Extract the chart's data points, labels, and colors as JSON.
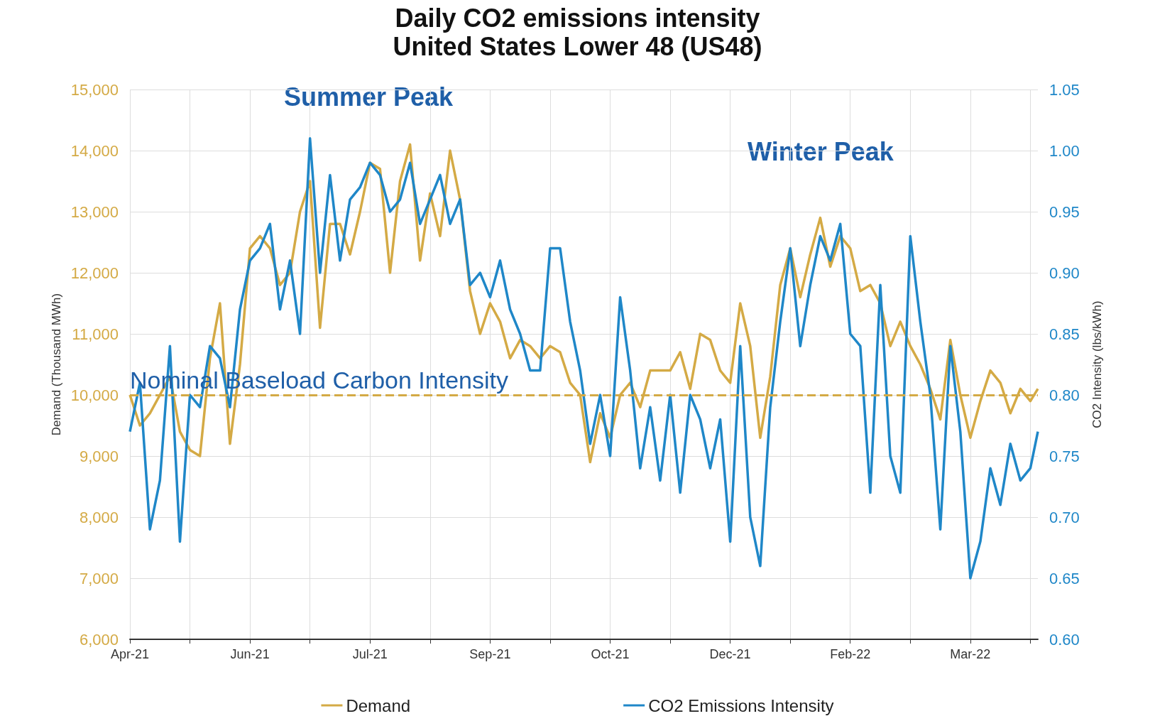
{
  "chart_data": {
    "type": "line",
    "title": "Daily CO2 emissions intensity",
    "subtitle": "United States Lower 48 (US48)",
    "ylabel": "Demand (Thousand MWh)",
    "y2label": "CO2 Intensity (lbs/kWh)",
    "x": [
      "2021-04-19",
      "2021-04-23",
      "2021-04-27",
      "2021-05-01",
      "2021-05-05",
      "2021-05-09",
      "2021-05-13",
      "2021-05-17",
      "2021-05-21",
      "2021-05-25",
      "2021-05-29",
      "2021-06-02",
      "2021-06-06",
      "2021-06-10",
      "2021-06-14",
      "2021-06-18",
      "2021-06-22",
      "2021-06-26",
      "2021-06-30",
      "2021-07-04",
      "2021-07-08",
      "2021-07-12",
      "2021-07-16",
      "2021-07-20",
      "2021-07-24",
      "2021-07-28",
      "2021-08-01",
      "2021-08-05",
      "2021-08-09",
      "2021-08-13",
      "2021-08-17",
      "2021-08-21",
      "2021-08-25",
      "2021-08-29",
      "2021-09-02",
      "2021-09-06",
      "2021-09-10",
      "2021-09-14",
      "2021-09-18",
      "2021-09-22",
      "2021-09-26",
      "2021-09-30",
      "2021-10-04",
      "2021-10-08",
      "2021-10-12",
      "2021-10-16",
      "2021-10-20",
      "2021-10-24",
      "2021-10-28",
      "2021-11-01",
      "2021-11-05",
      "2021-11-09",
      "2021-11-13",
      "2021-11-17",
      "2021-11-21",
      "2021-11-25",
      "2021-11-29",
      "2021-12-03",
      "2021-12-07",
      "2021-12-11",
      "2021-12-15",
      "2021-12-19",
      "2021-12-23",
      "2021-12-27",
      "2021-12-31",
      "2022-01-04",
      "2022-01-08",
      "2022-01-12",
      "2022-01-16",
      "2022-01-20",
      "2022-01-24",
      "2022-01-28",
      "2022-02-01",
      "2022-02-05",
      "2022-02-09",
      "2022-02-13",
      "2022-02-17",
      "2022-02-21",
      "2022-02-25",
      "2022-03-01",
      "2022-03-05",
      "2022-03-09",
      "2022-03-13",
      "2022-03-17",
      "2022-03-21",
      "2022-03-25",
      "2022-03-29",
      "2022-04-02",
      "2022-04-06",
      "2022-04-10",
      "2022-04-14",
      "2022-04-17"
    ],
    "series": [
      {
        "name": "Demand",
        "color": "#d4aa45",
        "values": [
          10000,
          9500,
          9700,
          10000,
          10300,
          9400,
          9100,
          9000,
          10600,
          11500,
          9200,
          10500,
          12400,
          12600,
          12400,
          11800,
          12000,
          13000,
          13500,
          11100,
          12800,
          12800,
          12300,
          13000,
          13800,
          13700,
          12000,
          13500,
          14100,
          12200,
          13300,
          12600,
          14000,
          13200,
          11700,
          11000,
          11500,
          11200,
          10600,
          10900,
          10800,
          10600,
          10800,
          10700,
          10200,
          10000,
          8900,
          9700,
          9300,
          10000,
          10200,
          9800,
          10400,
          10400,
          10400,
          10700,
          10100,
          11000,
          10900,
          10400,
          10200,
          11500,
          10800,
          9300,
          10300,
          11800,
          12400,
          11600,
          12300,
          12900,
          12100,
          12600,
          12400,
          11700,
          11800,
          11500,
          10800,
          11200,
          10800,
          10500,
          10100,
          9600,
          10900,
          10000,
          9300,
          9900,
          10400,
          10200,
          9700,
          10100,
          9900,
          10100
        ]
      },
      {
        "name": "CO2 Emissions Intensity",
        "color": "#1f87c8",
        "axis": "y2",
        "values": [
          0.77,
          0.81,
          0.69,
          0.73,
          0.84,
          0.68,
          0.8,
          0.79,
          0.84,
          0.83,
          0.79,
          0.87,
          0.91,
          0.92,
          0.94,
          0.87,
          0.91,
          0.85,
          1.01,
          0.9,
          0.98,
          0.91,
          0.96,
          0.97,
          0.99,
          0.98,
          0.95,
          0.96,
          0.99,
          0.94,
          0.96,
          0.98,
          0.94,
          0.96,
          0.89,
          0.9,
          0.88,
          0.91,
          0.87,
          0.85,
          0.82,
          0.82,
          0.92,
          0.92,
          0.86,
          0.82,
          0.76,
          0.8,
          0.75,
          0.88,
          0.82,
          0.74,
          0.79,
          0.73,
          0.8,
          0.72,
          0.8,
          0.78,
          0.74,
          0.78,
          0.68,
          0.84,
          0.7,
          0.66,
          0.79,
          0.86,
          0.92,
          0.84,
          0.89,
          0.93,
          0.91,
          0.94,
          0.85,
          0.84,
          0.72,
          0.89,
          0.75,
          0.72,
          0.93,
          0.86,
          0.8,
          0.69,
          0.84,
          0.77,
          0.65,
          0.68,
          0.74,
          0.71,
          0.76,
          0.73,
          0.74,
          0.77
        ]
      }
    ],
    "xlim": [
      "2021-04-19",
      "2022-04-17"
    ],
    "xticks": [
      {
        "value": "2021-04-19",
        "label": "Apr-21"
      },
      {
        "value": "2021-05-13",
        "label": null
      },
      {
        "value": "2021-06-06",
        "label": "Jun-21"
      },
      {
        "value": "2021-06-30",
        "label": null
      },
      {
        "value": "2021-07-24",
        "label": "Jul-21"
      },
      {
        "value": "2021-08-17",
        "label": null
      },
      {
        "value": "2021-09-10",
        "label": "Sep-21"
      },
      {
        "value": "2021-10-04",
        "label": null
      },
      {
        "value": "2021-10-28",
        "label": "Oct-21"
      },
      {
        "value": "2021-11-21",
        "label": null
      },
      {
        "value": "2021-12-15",
        "label": "Dec-21"
      },
      {
        "value": "2022-01-08",
        "label": null
      },
      {
        "value": "2022-02-01",
        "label": "Feb-22"
      },
      {
        "value": "2022-02-25",
        "label": null
      },
      {
        "value": "2022-03-21",
        "label": "Mar-22"
      },
      {
        "value": "2022-04-14",
        "label": null
      }
    ],
    "ylim": [
      6000,
      15000
    ],
    "yticks": [
      {
        "value": 6000,
        "label": "6,000"
      },
      {
        "value": 7000,
        "label": "7,000"
      },
      {
        "value": 8000,
        "label": "8,000"
      },
      {
        "value": 9000,
        "label": "9,000"
      },
      {
        "value": 10000,
        "label": "10,000"
      },
      {
        "value": 11000,
        "label": "11,000"
      },
      {
        "value": 12000,
        "label": "12,000"
      },
      {
        "value": 13000,
        "label": "13,000"
      },
      {
        "value": 14000,
        "label": "14,000"
      },
      {
        "value": 15000,
        "label": "15,000"
      }
    ],
    "y2lim": [
      0.6,
      1.05
    ],
    "y2ticks": [
      {
        "value": 0.6,
        "label": "0.60"
      },
      {
        "value": 0.65,
        "label": "0.65"
      },
      {
        "value": 0.7,
        "label": "0.70"
      },
      {
        "value": 0.75,
        "label": "0.75"
      },
      {
        "value": 0.8,
        "label": "0.80"
      },
      {
        "value": 0.85,
        "label": "0.85"
      },
      {
        "value": 0.9,
        "label": "0.90"
      },
      {
        "value": 0.95,
        "label": "0.95"
      },
      {
        "value": 1.0,
        "label": "1.00"
      },
      {
        "value": 1.05,
        "label": "1.05"
      }
    ],
    "ref_lines": [
      {
        "axis": "y2",
        "value": 0.8,
        "label": "Nominal Baseload Carbon Intensity",
        "color": "#d4aa45",
        "line_style": "dashed"
      }
    ],
    "annotations": [
      "Summer Peak",
      "Winter Peak"
    ],
    "grid": true,
    "legend": "bottom",
    "marker": "none",
    "line_style": "solid"
  }
}
